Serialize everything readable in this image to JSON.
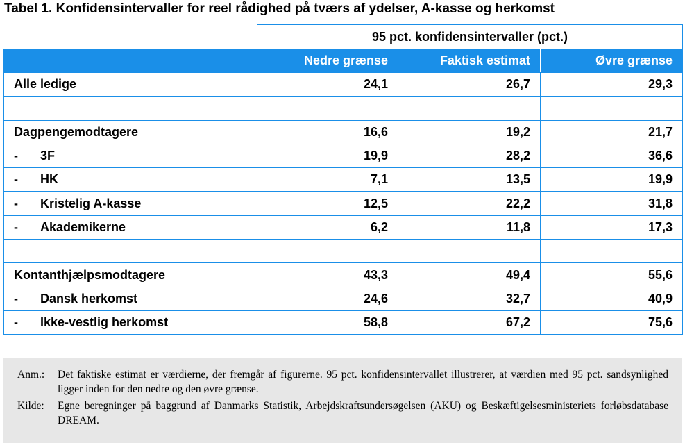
{
  "title": "Tabel 1. Konfidensintervaller for reel rådighed på tværs af ydelser, A-kasse og herkomst",
  "table": {
    "super_header": "95 pct. konfidensintervaller (pct.)",
    "columns": [
      "Nedre grænse",
      "Faktisk estimat",
      "Øvre grænse"
    ],
    "rows": [
      {
        "label": "Alle ledige",
        "dash": "",
        "values": [
          "24,1",
          "26,7",
          "29,3"
        ]
      },
      {
        "label": "",
        "dash": "",
        "values": [
          "",
          "",
          ""
        ]
      },
      {
        "label": "Dagpengemodtagere",
        "dash": "",
        "values": [
          "16,6",
          "19,2",
          "21,7"
        ]
      },
      {
        "label": "3F",
        "dash": "-",
        "values": [
          "19,9",
          "28,2",
          "36,6"
        ]
      },
      {
        "label": "HK",
        "dash": "-",
        "values": [
          "7,1",
          "13,5",
          "19,9"
        ]
      },
      {
        "label": "Kristelig A-kasse",
        "dash": "-",
        "values": [
          "12,5",
          "22,2",
          "31,8"
        ]
      },
      {
        "label": "Akademikerne",
        "dash": "-",
        "values": [
          "6,2",
          "11,8",
          "17,3"
        ]
      },
      {
        "label": "",
        "dash": "",
        "values": [
          "",
          "",
          ""
        ]
      },
      {
        "label": "Kontanthjælpsmodtagere",
        "dash": "",
        "values": [
          "43,3",
          "49,4",
          "55,6"
        ]
      },
      {
        "label": "Dansk herkomst",
        "dash": "-",
        "values": [
          "24,6",
          "32,7",
          "40,9"
        ]
      },
      {
        "label": "Ikke-vestlig herkomst",
        "dash": "-",
        "values": [
          "58,8",
          "67,2",
          "75,6"
        ]
      }
    ]
  },
  "notes": [
    {
      "label": "Anm.:",
      "text": "Det faktiske estimat er værdierne, der fremgår af figurerne. 95 pct. konfidensintervallet illustrerer, at værdien med 95 pct. sandsynlighed ligger inden for den nedre og den øvre grænse."
    },
    {
      "label": "Kilde:",
      "text": "Egne beregninger på baggrund af Danmarks Statistik, Arbejdskraftsundersøgelsen (AKU) og Beskæftigelsesministeriets forløbsdatabase DREAM."
    }
  ],
  "colors": {
    "header_blue": "#1a8fe8",
    "note_background": "#e7e7e7"
  }
}
